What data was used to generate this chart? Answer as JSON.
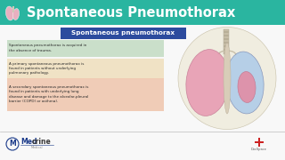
{
  "title": "Spontaneous Pneumothorax",
  "header_bg": "#2ab5a0",
  "body_bg": "#f5f5f5",
  "subtitle_box_text": "Spontaneous pneumothorax",
  "subtitle_box_bg": "#2c4b9e",
  "subtitle_box_text_color": "#ffffff",
  "text_blocks": [
    {
      "text": "Spontaneous pneumothorax is acquired in\nthe absence of trauma.",
      "bg": "#c5ddc5"
    },
    {
      "text": "A primary spontaneous pneumothorax is\nfound in patients without underlying\npulmonary pathology.",
      "bg": "#f0e0c0"
    },
    {
      "text": "A secondary spontaneous pneumothorax is\nfound in patients with underlying lung\ndisease and damage to the alveolar-pleural\nbarrier (COPD) or asthma).",
      "bg": "#f0c8b0"
    }
  ],
  "medcrine_color": "#1a3a8a",
  "docspace_red": "#cc2222",
  "footer_line_color": "#bbbbbb",
  "figw": 3.2,
  "figh": 1.8,
  "dpi": 100
}
